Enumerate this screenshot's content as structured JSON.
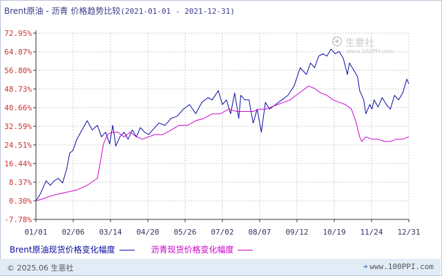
{
  "title": {
    "main": "Brent原油 - 沥青 价格趋势比较",
    "range": "(2021-01-01 - 2021-12-31)"
  },
  "watermark": {
    "brand": "生意社",
    "url": "www.100PPI.com"
  },
  "footer": {
    "copyright": "© 2025.06 生意社",
    "site": "www.100PPI.com"
  },
  "chart_data": {
    "type": "line",
    "title": "Brent原油 - 沥青 价格趋势比较",
    "ylim": [
      -7.78,
      72.95
    ],
    "y_ticks": [
      "72.95%",
      "64.87%",
      "56.80%",
      "48.73%",
      "40.66%",
      "32.59%",
      "24.51%",
      "16.44%",
      "8.37%",
      "0.30%",
      "-7.78%"
    ],
    "x_ticks": [
      "01/01",
      "02/06",
      "03/14",
      "04/20",
      "05/26",
      "07/02",
      "08/07",
      "09/12",
      "10/19",
      "11/24",
      "12/31"
    ],
    "x_domain": [
      0,
      364
    ],
    "grid": true,
    "legend_position": "bottom",
    "colors": {
      "axis": "#333333",
      "grid": "#cccccc",
      "tick_label": "#cc3333",
      "x_label": "#333366"
    },
    "series": [
      {
        "name": "Brent原油现货价格变化幅度",
        "color": "#0a0aa0",
        "x": [
          0,
          4,
          7,
          10,
          14,
          18,
          22,
          26,
          30,
          33,
          36,
          40,
          45,
          50,
          55,
          60,
          64,
          68,
          72,
          75,
          78,
          82,
          86,
          90,
          94,
          98,
          102,
          106,
          110,
          114,
          120,
          126,
          132,
          138,
          144,
          150,
          156,
          162,
          168,
          172,
          178,
          182,
          186,
          190,
          194,
          198,
          200,
          204,
          208,
          212,
          216,
          220,
          224,
          228,
          234,
          240,
          246,
          252,
          258,
          264,
          268,
          272,
          276,
          280,
          284,
          288,
          292,
          296,
          300,
          304,
          306,
          310,
          314,
          316,
          320,
          322,
          326,
          328,
          330,
          334,
          338,
          342,
          346,
          350,
          354,
          358,
          362,
          364
        ],
        "y": [
          0.3,
          3,
          6,
          9,
          7,
          9,
          10,
          8,
          14,
          21,
          22,
          27,
          31,
          35,
          31,
          33,
          28,
          30,
          25,
          33,
          24,
          28,
          30,
          27,
          31,
          28,
          32,
          30,
          29,
          31,
          34,
          33,
          36,
          37,
          40,
          42,
          38,
          43,
          45,
          44,
          48,
          42,
          44,
          38,
          47,
          36,
          46,
          44,
          44,
          34,
          40,
          30,
          43,
          40,
          42,
          44,
          46,
          50,
          58,
          55,
          60,
          58,
          63,
          64,
          63,
          66,
          64,
          65,
          62,
          55,
          60,
          57,
          54,
          48,
          44,
          38,
          42,
          40,
          44,
          41,
          45,
          42,
          40,
          46,
          44,
          47,
          53,
          51
        ]
      },
      {
        "name": "沥青现货价格变化幅度",
        "color": "#cc00cc",
        "x": [
          0,
          6,
          12,
          20,
          30,
          40,
          50,
          60,
          66,
          70,
          74,
          80,
          86,
          92,
          98,
          104,
          110,
          116,
          124,
          132,
          140,
          148,
          156,
          164,
          172,
          180,
          188,
          196,
          204,
          212,
          218,
          224,
          230,
          236,
          242,
          248,
          254,
          260,
          266,
          272,
          278,
          284,
          290,
          296,
          302,
          308,
          312,
          316,
          318,
          322,
          328,
          334,
          340,
          346,
          352,
          358,
          364
        ],
        "y": [
          0.3,
          1,
          2,
          3,
          4,
          5,
          7,
          10,
          25,
          29,
          30,
          30,
          28,
          30,
          28,
          27,
          28,
          29,
          29,
          31,
          33,
          33,
          35,
          36,
          38,
          38,
          40,
          39,
          39,
          39,
          40,
          40,
          41,
          42,
          43,
          44,
          46,
          48,
          50,
          49,
          47,
          46,
          44,
          43,
          42,
          40,
          35,
          28,
          26,
          28,
          27,
          27,
          26,
          26,
          27,
          27,
          28
        ]
      }
    ]
  }
}
